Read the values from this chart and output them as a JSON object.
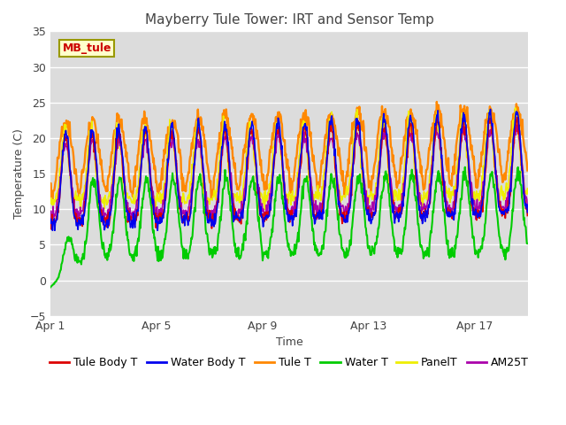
{
  "title": "Mayberry Tule Tower: IRT and Sensor Temp",
  "xlabel": "Time",
  "ylabel": "Temperature (C)",
  "ylim": [
    -5,
    35
  ],
  "yticks": [
    -5,
    0,
    5,
    10,
    15,
    20,
    25,
    30,
    35
  ],
  "xtick_labels": [
    "Apr 1",
    "Apr 5",
    "Apr 9",
    "Apr 13",
    "Apr 17"
  ],
  "xtick_positions": [
    0,
    4,
    8,
    12,
    16
  ],
  "n_days": 18,
  "pts_per_day": 48,
  "bg_color": "#dcdcdc",
  "fig_color": "#ffffff",
  "series_colors": {
    "Tule Body T": "#dd0000",
    "Water Body T": "#0000ee",
    "Tule T": "#ff8800",
    "Water T": "#00cc00",
    "PanelT": "#eeee00",
    "AM25T": "#aa00aa"
  },
  "legend_label": "MB_tule",
  "legend_box_facecolor": "#ffffcc",
  "legend_box_edgecolor": "#999900",
  "title_color": "#444444",
  "axis_label_color": "#444444",
  "tick_label_color": "#444444",
  "grid_color": "#ffffff",
  "grid_lw": 1.0,
  "line_lw": 1.2,
  "legend_fontsize": 9,
  "title_fontsize": 11,
  "axis_fontsize": 9
}
